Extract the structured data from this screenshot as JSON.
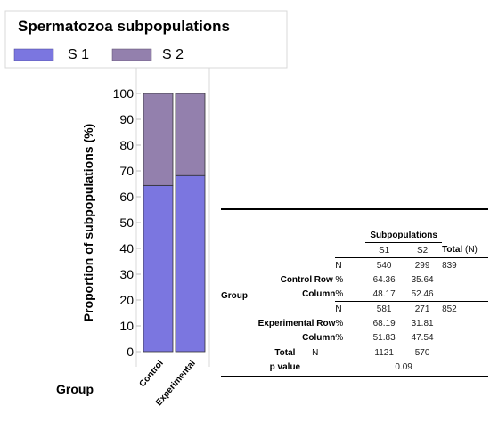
{
  "chart_data": {
    "type": "bar",
    "stacked": true,
    "legend": {
      "title": "Spermatozoa subpopulations",
      "placement": "top-left",
      "entries": [
        {
          "name": "S 1",
          "color": "#7b76e0"
        },
        {
          "name": "S 2",
          "color": "#9380ad"
        }
      ]
    },
    "categories": [
      "Control",
      "Experimental"
    ],
    "series": [
      {
        "name": "S 1",
        "values": [
          64.36,
          68.19
        ],
        "color": "#7b76e0"
      },
      {
        "name": "S 2",
        "values": [
          35.64,
          31.81
        ],
        "color": "#9380ad"
      }
    ],
    "xlabel": "Group",
    "ylabel": "Proportion of subpopulations (%)",
    "ylim": [
      0,
      100
    ],
    "yticks": [
      0,
      10,
      20,
      30,
      40,
      50,
      60,
      70,
      80,
      90,
      100
    ],
    "grid": false
  },
  "table": {
    "header_group": "Subpopulations",
    "col_s1": "S1",
    "col_s2": "S2",
    "col_total": "Total",
    "col_total_unit": "(N)",
    "group_label": "Group",
    "control": {
      "label": "Control",
      "row_label": "Row",
      "column_label": "Column",
      "n_label": "N",
      "pct_label": "%",
      "n": [
        "540",
        "299"
      ],
      "total": "839",
      "row_pct": [
        "64.36",
        "35.64"
      ],
      "col_pct": [
        "48.17",
        "52.46"
      ]
    },
    "experimental": {
      "label": "Experimental",
      "row_label": "Row",
      "column_label": "Column",
      "n_label": "N",
      "pct_label": "%",
      "n": [
        "581",
        "271"
      ],
      "total": "852",
      "row_pct": [
        "68.19",
        "31.81"
      ],
      "col_pct": [
        "51.83",
        "47.54"
      ]
    },
    "total_row": {
      "label": "Total",
      "n_label": "N",
      "n": [
        "1121",
        "570"
      ]
    },
    "pvalue": {
      "label": "p value",
      "value": "0.09"
    }
  }
}
